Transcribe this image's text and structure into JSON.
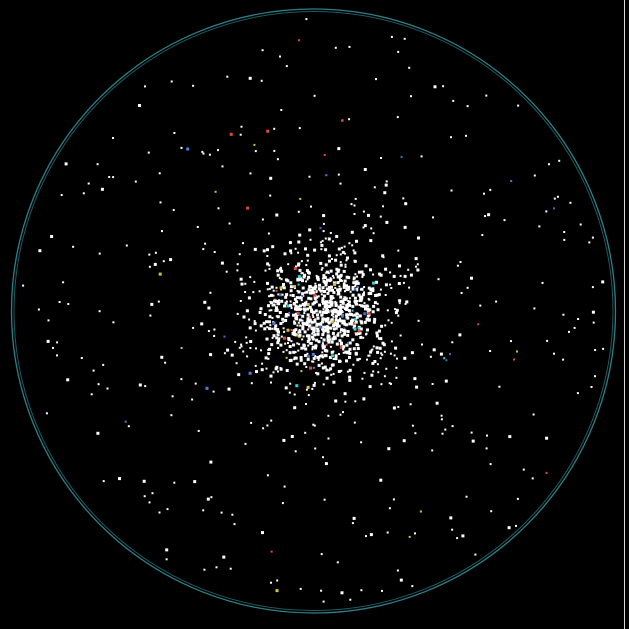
{
  "scene": {
    "kind": "star-field",
    "background_color": "#000000",
    "dominant_star_color": "#ffffff",
    "accent_star_colors": [
      "#4d7fd8",
      "#3f6fc4",
      "#e04a3a",
      "#d8c23a",
      "#3fd0d0"
    ],
    "circle_rim_colors": [
      "#2f7f86",
      "#1f5b62"
    ],
    "right_edge_rule_color": "#d8d8d8",
    "stars_seed": 1337,
    "cluster": {
      "present": true,
      "shape": "dense round core with sparse halo",
      "star_count_estimate": 1100
    },
    "field_star_count_estimate": 320,
    "accent_star_fraction": 0.12
  }
}
